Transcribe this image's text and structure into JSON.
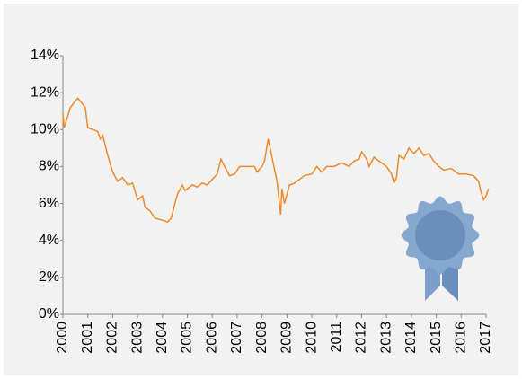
{
  "chart_data": {
    "type": "line",
    "x": [
      2000.0,
      2000.05,
      2000.3,
      2000.6,
      2000.9,
      2001.0,
      2001.4,
      2001.5,
      2001.6,
      2001.8,
      2002.0,
      2002.2,
      2002.4,
      2002.6,
      2002.8,
      2003.0,
      2003.2,
      2003.3,
      2003.5,
      2003.7,
      2004.0,
      2004.2,
      2004.35,
      2004.5,
      2004.6,
      2004.8,
      2004.9,
      2005.0,
      2005.2,
      2005.4,
      2005.6,
      2005.8,
      2006.0,
      2006.2,
      2006.35,
      2006.5,
      2006.7,
      2006.9,
      2007.1,
      2007.4,
      2007.7,
      2007.8,
      2008.0,
      2008.1,
      2008.25,
      2008.4,
      2008.6,
      2008.75,
      2008.8,
      2008.9,
      2009.0,
      2009.1,
      2009.3,
      2009.5,
      2009.7,
      2010.0,
      2010.2,
      2010.4,
      2010.6,
      2010.9,
      2011.2,
      2011.5,
      2011.7,
      2011.9,
      2012.0,
      2012.2,
      2012.3,
      2012.5,
      2012.8,
      2013.0,
      2013.2,
      2013.3,
      2013.4,
      2013.5,
      2013.7,
      2013.9,
      2014.1,
      2014.3,
      2014.5,
      2014.7,
      2014.9,
      2015.1,
      2015.3,
      2015.6,
      2015.9,
      2016.2,
      2016.5,
      2016.7,
      2016.8,
      2016.9,
      2017.0,
      2017.1
    ],
    "series": [
      {
        "color": "#f0892a",
        "values": [
          10.9,
          10.1,
          11.2,
          11.7,
          11.2,
          10.1,
          9.9,
          9.5,
          9.7,
          8.6,
          7.7,
          7.2,
          7.4,
          7.0,
          7.1,
          6.2,
          6.4,
          5.8,
          5.6,
          5.2,
          5.1,
          5.0,
          5.2,
          6.0,
          6.5,
          7.0,
          6.7,
          6.8,
          7.0,
          6.9,
          7.1,
          7.0,
          7.3,
          7.6,
          8.4,
          8.0,
          7.5,
          7.6,
          8.0,
          8.0,
          8.0,
          7.7,
          8.0,
          8.3,
          9.5,
          8.5,
          7.2,
          5.4,
          6.8,
          6.0,
          6.5,
          7.0,
          7.1,
          7.3,
          7.5,
          7.6,
          8.0,
          7.7,
          8.0,
          8.0,
          8.2,
          8.0,
          8.3,
          8.4,
          8.8,
          8.4,
          8.0,
          8.5,
          8.2,
          8.0,
          7.6,
          7.1,
          7.4,
          8.6,
          8.4,
          9.0,
          8.7,
          9.0,
          8.6,
          8.7,
          8.3,
          8.0,
          7.8,
          7.9,
          7.6,
          7.6,
          7.5,
          7.2,
          6.6,
          6.2,
          6.4,
          6.8
        ]
      }
    ],
    "xlim": [
      2000,
      2017
    ],
    "xticks": [
      2000,
      2001,
      2002,
      2003,
      2004,
      2005,
      2006,
      2007,
      2008,
      2009,
      2010,
      2011,
      2012,
      2013,
      2014,
      2015,
      2016,
      2017
    ],
    "ylim": [
      0,
      14
    ],
    "yticks": [
      {
        "value": 0,
        "label": "0%"
      },
      {
        "value": 2,
        "label": "2%"
      },
      {
        "value": 4,
        "label": "4%"
      },
      {
        "value": 6,
        "label": "6%"
      },
      {
        "value": 8,
        "label": "8%"
      },
      {
        "value": 10,
        "label": "10%"
      },
      {
        "value": 12,
        "label": "12%"
      },
      {
        "value": 14,
        "label": "14%"
      }
    ]
  }
}
